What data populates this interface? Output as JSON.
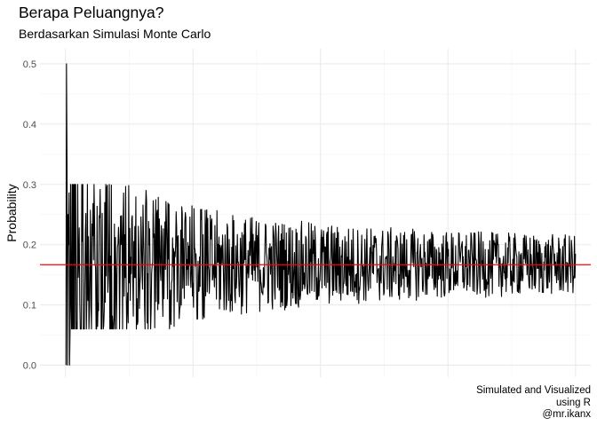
{
  "chart_data": {
    "type": "line",
    "title": "Berapa Peluangnya?",
    "subtitle": "Berdasarkan Simulasi Monte Carlo",
    "ylabel": "Probability",
    "xlabel": "",
    "caption_lines": [
      "Simulated and Visualized",
      "using R",
      "@mr.ikanx"
    ],
    "yticks": [
      "0.0",
      "0.1",
      "0.2",
      "0.3",
      "0.4",
      "0.5"
    ],
    "ylim": [
      -0.02,
      0.525
    ],
    "xlim": [
      -50,
      1030
    ],
    "x_tick_labels_visible": false,
    "grid": true,
    "series": [
      {
        "color": "#000000",
        "description": "Running probability estimate from Monte Carlo simulation, one value per simulation run (1 to 1000); starts volatile (0 to 0.5) and converges toward about 1/6",
        "n_points": 1000,
        "first_values": [
          0.0,
          0.5,
          0.333,
          0.0,
          0.25,
          0.2,
          0.286,
          0.0
        ]
      }
    ],
    "reference_line": {
      "y": 0.1667,
      "color": "#ff0000"
    }
  }
}
